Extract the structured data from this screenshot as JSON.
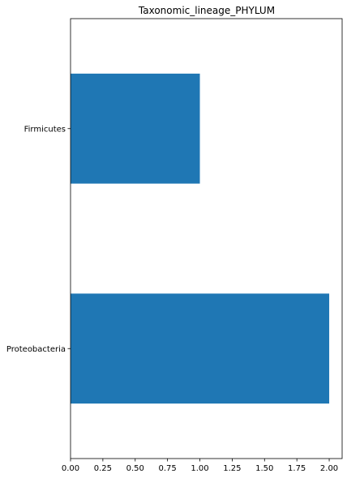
{
  "chart_data": {
    "type": "bar",
    "orientation": "horizontal",
    "title": "Taxonomic_lineage_PHYLUM",
    "categories": [
      "Proteobacteria",
      "Firmicutes"
    ],
    "values": [
      2,
      1
    ],
    "xlabel": "",
    "ylabel": "",
    "xlim": [
      0,
      2.1
    ],
    "xticks": [
      0.0,
      0.25,
      0.5,
      0.75,
      1.0,
      1.25,
      1.5,
      1.75,
      2.0
    ],
    "xtick_labels": [
      "0.00",
      "0.25",
      "0.50",
      "0.75",
      "1.00",
      "1.25",
      "1.50",
      "1.75",
      "2.00"
    ],
    "grid": false,
    "legend": "none",
    "bar_color": "#1f77b4"
  }
}
